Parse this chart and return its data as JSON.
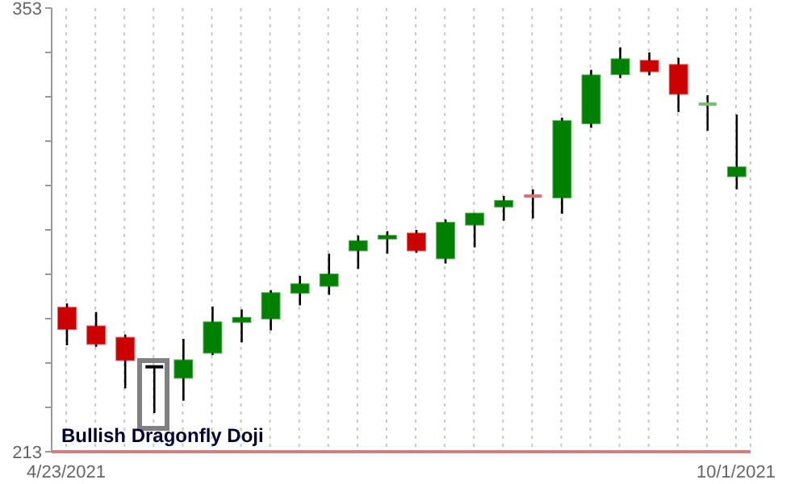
{
  "chart_data": {
    "type": "candlestick",
    "categories": [
      "4/23/2021",
      null,
      null,
      null,
      null,
      null,
      null,
      null,
      null,
      null,
      null,
      null,
      null,
      null,
      null,
      null,
      null,
      null,
      null,
      null,
      null,
      null,
      null,
      "10/1/2021"
    ],
    "ohlc": [
      [
        258.5,
        259.8,
        246.6,
        251.7
      ],
      [
        252.6,
        257.1,
        246.1,
        247.0
      ],
      [
        249.0,
        250.0,
        233.0,
        241.9
      ],
      [
        239.8,
        239.8,
        225.2,
        239.8
      ],
      [
        236.3,
        248.6,
        229.1,
        241.9
      ],
      [
        244.2,
        258.8,
        243.5,
        253.9
      ],
      [
        253.9,
        257.9,
        247.5,
        255.3
      ],
      [
        255.0,
        264.0,
        251.3,
        263.1
      ],
      [
        263.1,
        268.5,
        259.2,
        265.9
      ],
      [
        265.3,
        275.5,
        262.5,
        269.0
      ],
      [
        276.5,
        281.2,
        270.7,
        279.5
      ],
      [
        280.2,
        282.6,
        275.5,
        281.2
      ],
      [
        281.9,
        283.0,
        275.8,
        276.5
      ],
      [
        274.0,
        286.3,
        272.4,
        285.3
      ],
      [
        284.6,
        288.2,
        277.5,
        288.2
      ],
      [
        290.3,
        293.7,
        285.9,
        292.2
      ],
      [
        293.7,
        295.8,
        286.6,
        293.2
      ],
      [
        293.2,
        318.4,
        288.1,
        317.4
      ],
      [
        316.6,
        333.5,
        315.2,
        331.8
      ],
      [
        332.1,
        340.6,
        330.9,
        336.9
      ],
      [
        336.4,
        339.0,
        331.8,
        333.0
      ],
      [
        335.1,
        337.3,
        320.2,
        325.9
      ],
      [
        322.4,
        325.5,
        314.3,
        322.7
      ],
      [
        299.9,
        319.4,
        295.8,
        302.8
      ]
    ],
    "colors": [
      "#cc0000",
      "#cc0000",
      "#cc0000",
      "#000000",
      "#008000",
      "#008000",
      "#008000",
      "#008000",
      "#008000",
      "#008000",
      "#008000",
      "#008000",
      "#cc0000",
      "#008000",
      "#008000",
      "#008000",
      "#e07070",
      "#008000",
      "#008000",
      "#008000",
      "#cc0000",
      "#cc0000",
      "#70c070",
      "#008000"
    ],
    "ylim": [
      213,
      353
    ],
    "yticks": [
      213,
      {
        "value": 227,
        "label": null
      },
      {
        "value": 241,
        "label": null
      },
      {
        "value": 255,
        "label": null
      },
      {
        "value": 269,
        "label": null
      },
      {
        "value": 283,
        "label": null
      },
      {
        "value": 297,
        "label": null
      },
      {
        "value": 311,
        "label": null
      },
      {
        "value": 325,
        "label": null
      },
      {
        "value": 339,
        "label": null
      },
      353
    ],
    "grid": "x",
    "annotations": [
      "Bullish Dragonfly Doji"
    ]
  }
}
